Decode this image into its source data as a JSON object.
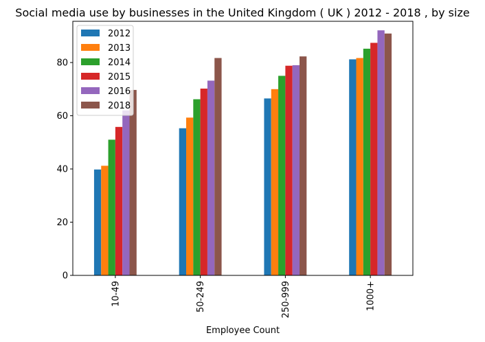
{
  "chart_data": {
    "type": "bar",
    "title": "Social media use by businesses in the United Kingdom ( UK ) 2012 - 2018 , by size",
    "xlabel": "Employee Count",
    "ylabel": "",
    "categories": [
      "10-49",
      "50-249",
      "250-999",
      "1000+"
    ],
    "ylim": [
      0,
      95.5
    ],
    "yticks": [
      0,
      20,
      40,
      60,
      80
    ],
    "legend_position": "upper-left",
    "grid": false,
    "series": [
      {
        "name": "2012",
        "color": "#1f77b4",
        "values": [
          39.8,
          55.3,
          66.5,
          81.2
        ]
      },
      {
        "name": "2013",
        "color": "#ff7f0e",
        "values": [
          41.2,
          59.3,
          70.0,
          81.7
        ]
      },
      {
        "name": "2014",
        "color": "#2ca02c",
        "values": [
          51.0,
          66.2,
          75.0,
          85.2
        ]
      },
      {
        "name": "2015",
        "color": "#d62728",
        "values": [
          55.8,
          70.2,
          78.8,
          87.4
        ]
      },
      {
        "name": "2016",
        "color": "#9467bd",
        "values": [
          62.0,
          73.2,
          79.0,
          92.1
        ]
      },
      {
        "name": "2018",
        "color": "#8c564b",
        "values": [
          69.7,
          81.7,
          82.3,
          90.9
        ]
      }
    ]
  }
}
